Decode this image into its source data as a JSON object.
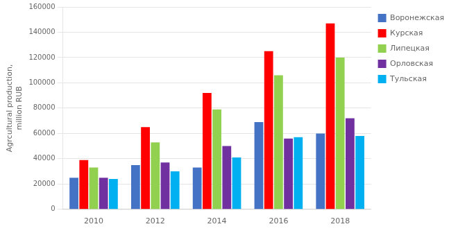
{
  "chart_data": {
    "type": "bar",
    "categories": [
      "2010",
      "2012",
      "2014",
      "2016",
      "2018"
    ],
    "series": [
      {
        "name": "Воронежская",
        "color": "#4472C4",
        "values": [
          25000,
          35000,
          33000,
          69000,
          60000
        ]
      },
      {
        "name": "Курская",
        "color": "#FF0000",
        "values": [
          39000,
          65000,
          92000,
          125000,
          147000
        ]
      },
      {
        "name": "Липецкая",
        "color": "#92D050",
        "values": [
          33000,
          53000,
          79000,
          106000,
          120000
        ]
      },
      {
        "name": "Орловская",
        "color": "#7030A0",
        "values": [
          25000,
          37000,
          50000,
          56000,
          72000
        ]
      },
      {
        "name": "Тульская",
        "color": "#00B0F0",
        "values": [
          24000,
          30000,
          41000,
          57000,
          58000
        ]
      }
    ],
    "ylabel": "Agrcultural production,\nmillion RUB",
    "ylim": [
      0,
      160000
    ],
    "yticks": [
      0,
      20000,
      40000,
      60000,
      80000,
      100000,
      120000,
      140000,
      160000
    ],
    "grid": true,
    "legend": "right"
  }
}
